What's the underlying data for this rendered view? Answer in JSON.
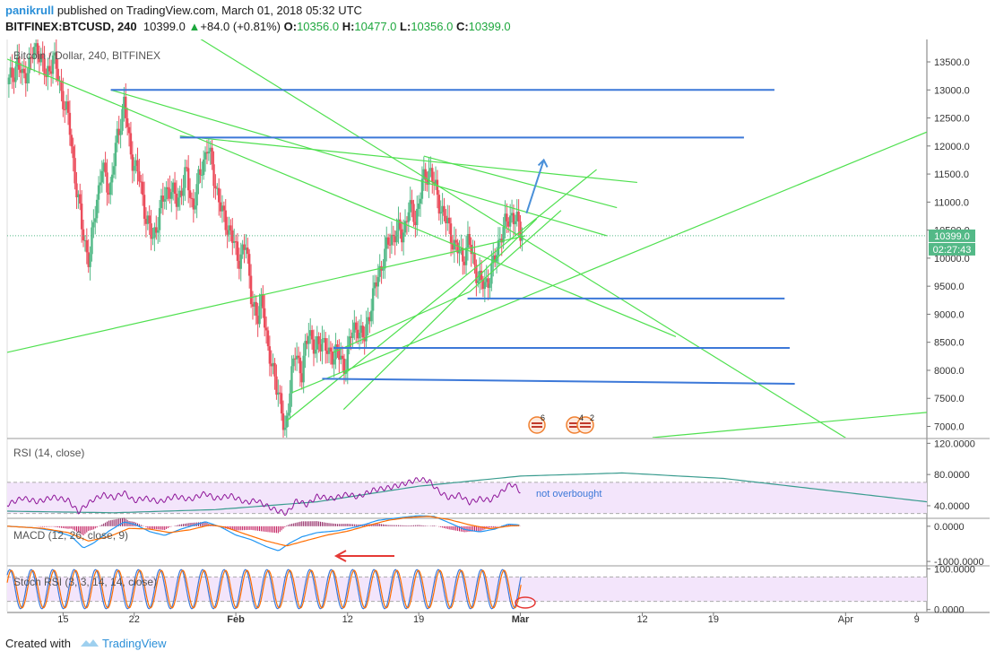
{
  "header": {
    "author": "panikrull",
    "published_text": "published on TradingView.com, March 01, 2018 05:32 UTC",
    "symbol": "BITFINEX:BTCUSD, 240",
    "last": "10399.0",
    "change": "+84.0 (+0.81%)",
    "open_label": "O:",
    "open": "10356.0",
    "high_label": "H:",
    "high": "10477.0",
    "low_label": "L:",
    "low": "10356.0",
    "close_label": "C:",
    "close": "10399.0"
  },
  "footer": {
    "created_with": "Created with",
    "brand": "TradingView"
  },
  "colors": {
    "up": "#53b987",
    "down": "#eb4d5c",
    "trendline": "#4fe04f",
    "level": "#3c78d8",
    "axis": "#555555",
    "rsi": "#8e1599",
    "band_fill": "#f3e5fb",
    "macd": "#2196f3",
    "signal": "#ff6d00",
    "stoch_k": "#3c78d8",
    "stoch_d": "#ff6d00"
  },
  "chart_data": [
    {
      "type": "candlestick",
      "title": "Bitcoin / Dollar, 240, BITFINEX",
      "ylim": [
        6800,
        13900
      ],
      "y_ticks": [
        "13500.0",
        "13000.0",
        "12500.0",
        "12000.0",
        "11500.0",
        "11000.0",
        "10500.0",
        "10000.0",
        "9500.0",
        "9000.0",
        "8500.0",
        "8000.0",
        "7500.0",
        "7000.0"
      ],
      "y_tick_values": [
        13500,
        13000,
        12500,
        12000,
        11500,
        11000,
        10500,
        10000,
        9500,
        9000,
        8500,
        8000,
        7500,
        7000
      ],
      "x_ticks": [
        "15",
        "22",
        "Feb",
        "12",
        "19",
        "Mar",
        "12",
        "19",
        "Apr",
        "9"
      ],
      "x_tick_days": [
        15,
        22,
        32,
        43,
        50,
        60,
        72,
        79,
        92,
        99
      ],
      "x_range_days": [
        9.5,
        100
      ],
      "price_key_points": [
        [
          9.6,
          13100
        ],
        [
          10.5,
          13500
        ],
        [
          11,
          13200
        ],
        [
          12.5,
          13800
        ],
        [
          13.3,
          13200
        ],
        [
          14,
          13600
        ],
        [
          14.8,
          13000
        ],
        [
          15.6,
          12400
        ],
        [
          16.2,
          11400
        ],
        [
          16.8,
          10600
        ],
        [
          17.6,
          9900
        ],
        [
          18.1,
          10800
        ],
        [
          18.8,
          11600
        ],
        [
          19.6,
          11200
        ],
        [
          20.3,
          12100
        ],
        [
          21,
          12800
        ],
        [
          21.6,
          11900
        ],
        [
          22.4,
          11500
        ],
        [
          23.1,
          10800
        ],
        [
          23.8,
          10300
        ],
        [
          24.6,
          10900
        ],
        [
          25.4,
          11300
        ],
        [
          26.2,
          11000
        ],
        [
          27.1,
          11500
        ],
        [
          27.8,
          10900
        ],
        [
          28.6,
          11600
        ],
        [
          29.2,
          12000
        ],
        [
          29.8,
          11500
        ],
        [
          30.6,
          10800
        ],
        [
          31.4,
          10500
        ],
        [
          32.2,
          10000
        ],
        [
          33,
          10200
        ],
        [
          33.5,
          9400
        ],
        [
          34.1,
          8800
        ],
        [
          34.6,
          9400
        ],
        [
          35.2,
          8200
        ],
        [
          35.8,
          8000
        ],
        [
          36.4,
          7300
        ],
        [
          36.8,
          6900
        ],
        [
          37.3,
          7600
        ],
        [
          37.9,
          8400
        ],
        [
          38.5,
          7900
        ],
        [
          39.2,
          8800
        ],
        [
          39.8,
          8300
        ],
        [
          40.5,
          8600
        ],
        [
          41.2,
          8200
        ],
        [
          41.9,
          8400
        ],
        [
          42.6,
          8000
        ],
        [
          43.3,
          8600
        ],
        [
          44,
          8800
        ],
        [
          44.6,
          8500
        ],
        [
          45.2,
          9100
        ],
        [
          45.9,
          9600
        ],
        [
          46.5,
          10000
        ],
        [
          47.1,
          10300
        ],
        [
          47.8,
          10500
        ],
        [
          48.4,
          10400
        ],
        [
          49,
          10900
        ],
        [
          49.7,
          10700
        ],
        [
          50.3,
          11300
        ],
        [
          51.1,
          11600
        ],
        [
          51.8,
          11100
        ],
        [
          52.4,
          10800
        ],
        [
          53,
          10500
        ],
        [
          53.6,
          10200
        ],
        [
          54.3,
          10000
        ],
        [
          54.9,
          10300
        ],
        [
          55.6,
          9800
        ],
        [
          56.2,
          9500
        ],
        [
          56.8,
          9600
        ],
        [
          57.4,
          9900
        ],
        [
          58,
          10400
        ],
        [
          58.6,
          10600
        ],
        [
          59.1,
          10800
        ],
        [
          59.5,
          10700
        ],
        [
          59.9,
          10500
        ],
        [
          60.1,
          10399
        ]
      ],
      "horizontal_levels": [
        {
          "start_day": 19.7,
          "end_day": 85,
          "price": 13000
        },
        {
          "start_day": 26.5,
          "end_day": 82,
          "price": 12150
        },
        {
          "start_day": 54.8,
          "end_day": 86,
          "price": 9280
        },
        {
          "start_day": 41.6,
          "end_day": 86.5,
          "price": 8400
        },
        {
          "start_day": 40.5,
          "end_day": 87,
          "price": 7850,
          "end_price": 7760
        }
      ],
      "trend_lines": [
        {
          "start": [
            9.5,
            8320
          ],
          "end": [
            60.5,
            10400
          ]
        },
        {
          "start": [
            17,
            15200
          ],
          "end": [
            100,
            5900
          ]
        },
        {
          "start": [
            9.5,
            13550
          ],
          "end": [
            75.3,
            8600
          ]
        },
        {
          "start": [
            19.7,
            13000
          ],
          "end": [
            68.5,
            10400
          ]
        },
        {
          "start": [
            26.5,
            12180
          ],
          "end": [
            71.5,
            11350
          ]
        },
        {
          "start": [
            50.5,
            11820
          ],
          "end": [
            69.5,
            10900
          ]
        },
        {
          "start": [
            37.5,
            7600
          ],
          "end": [
            100,
            12250
          ]
        },
        {
          "start": [
            37,
            7100
          ],
          "end": [
            67.5,
            11580
          ]
        },
        {
          "start": [
            41.6,
            8320
          ],
          "end": [
            55,
            9400
          ]
        },
        {
          "start": [
            55,
            9400
          ],
          "end": [
            64,
            10850
          ]
        },
        {
          "start": [
            42.6,
            7300
          ],
          "end": [
            61.6,
            10700
          ]
        },
        {
          "start": [
            73,
            6800
          ],
          "end": [
            100,
            7250
          ]
        }
      ],
      "arrow": {
        "start": [
          60.6,
          10800
        ],
        "end": [
          62.3,
          11750
        ]
      },
      "last_price_label": "10399.0",
      "countdown_label": "02:27:43",
      "event_badges": [
        "6",
        "4",
        "2"
      ]
    },
    {
      "type": "line",
      "title": "RSI (14, close)",
      "ylim": [
        25,
        125
      ],
      "y_ticks": [
        "120.0000",
        "80.0000",
        "40.0000"
      ],
      "y_tick_values": [
        120,
        80,
        40
      ],
      "band": [
        30,
        70
      ],
      "annotation": "not overbought",
      "rsi_key_points": [
        [
          9.6,
          42
        ],
        [
          11,
          50
        ],
        [
          12.5,
          45
        ],
        [
          14,
          51
        ],
        [
          15.5,
          47
        ],
        [
          16.5,
          32
        ],
        [
          17.2,
          40
        ],
        [
          18,
          48
        ],
        [
          19,
          54
        ],
        [
          20,
          50
        ],
        [
          21,
          57
        ],
        [
          22,
          46
        ],
        [
          23,
          50
        ],
        [
          24.5,
          45
        ],
        [
          26,
          52
        ],
        [
          27.5,
          48
        ],
        [
          29,
          56
        ],
        [
          30,
          49
        ],
        [
          31.5,
          53
        ],
        [
          33,
          44
        ],
        [
          34,
          47
        ],
        [
          35,
          40
        ],
        [
          36,
          34
        ],
        [
          37,
          30
        ],
        [
          38,
          47
        ],
        [
          39,
          41
        ],
        [
          40,
          52
        ],
        [
          41.5,
          49
        ],
        [
          43,
          55
        ],
        [
          44,
          51
        ],
        [
          45.5,
          60
        ],
        [
          47,
          63
        ],
        [
          48,
          66
        ],
        [
          49,
          70
        ],
        [
          50,
          74
        ],
        [
          51,
          72
        ],
        [
          52,
          58
        ],
        [
          53,
          50
        ],
        [
          54,
          54
        ],
        [
          55,
          44
        ],
        [
          56,
          49
        ],
        [
          57,
          47
        ],
        [
          58,
          56
        ],
        [
          59,
          68
        ],
        [
          59.6,
          64
        ],
        [
          60.1,
          56
        ]
      ],
      "slow_curve_points": [
        [
          9.5,
          33
        ],
        [
          20,
          31
        ],
        [
          30,
          35
        ],
        [
          40,
          45
        ],
        [
          50,
          65
        ],
        [
          60,
          78
        ],
        [
          70,
          82
        ],
        [
          80,
          75
        ],
        [
          90,
          60
        ],
        [
          100,
          45
        ]
      ]
    },
    {
      "type": "histogram+line",
      "title": "MACD (12, 26, close, 9)",
      "ylim": [
        -1100,
        200
      ],
      "y_ticks": [
        "0.0000",
        "-1000.0000"
      ],
      "y_tick_values": [
        0,
        -1000
      ],
      "macd_key_points": [
        [
          9.6,
          0
        ],
        [
          12,
          -40
        ],
        [
          14,
          -120
        ],
        [
          15.8,
          -280
        ],
        [
          17,
          -620
        ],
        [
          18,
          -480
        ],
        [
          19.5,
          -140
        ],
        [
          21,
          120
        ],
        [
          22,
          60
        ],
        [
          23.5,
          -150
        ],
        [
          25,
          -260
        ],
        [
          26.5,
          -90
        ],
        [
          28,
          40
        ],
        [
          29,
          130
        ],
        [
          30.5,
          -20
        ],
        [
          32,
          -250
        ],
        [
          33.5,
          -380
        ],
        [
          35,
          -580
        ],
        [
          36.2,
          -700
        ],
        [
          37.3,
          -480
        ],
        [
          38.5,
          -300
        ],
        [
          40,
          -180
        ],
        [
          42,
          -130
        ],
        [
          44,
          -10
        ],
        [
          46,
          170
        ],
        [
          48,
          240
        ],
        [
          50,
          300
        ],
        [
          51.5,
          280
        ],
        [
          53,
          100
        ],
        [
          54.5,
          -90
        ],
        [
          56,
          -160
        ],
        [
          57.5,
          -80
        ],
        [
          58.8,
          60
        ],
        [
          59.8,
          40
        ],
        [
          60.1,
          15
        ]
      ],
      "signal_key_points": [
        [
          9.6,
          0
        ],
        [
          13,
          -60
        ],
        [
          15.5,
          -180
        ],
        [
          17.5,
          -420
        ],
        [
          19.5,
          -300
        ],
        [
          21.5,
          -60
        ],
        [
          23.5,
          -80
        ],
        [
          25.5,
          -180
        ],
        [
          27.5,
          -100
        ],
        [
          29.5,
          40
        ],
        [
          31,
          -30
        ],
        [
          33,
          -230
        ],
        [
          35,
          -420
        ],
        [
          37,
          -560
        ],
        [
          39,
          -400
        ],
        [
          41,
          -250
        ],
        [
          43,
          -140
        ],
        [
          45,
          20
        ],
        [
          47,
          170
        ],
        [
          49,
          250
        ],
        [
          51,
          280
        ],
        [
          53,
          190
        ],
        [
          55,
          40
        ],
        [
          57,
          -70
        ],
        [
          59,
          10
        ],
        [
          60.1,
          20
        ]
      ]
    },
    {
      "type": "line",
      "title": "Stoch RSI (3, 3, 14, 14, close)",
      "ylim": [
        -5,
        105
      ],
      "y_ticks": [
        "100.0000",
        "0.0000"
      ],
      "y_tick_values": [
        100,
        0
      ],
      "band": [
        20,
        80
      ],
      "stoch_cycles": 24,
      "stoch_phase": 0.8
    }
  ]
}
